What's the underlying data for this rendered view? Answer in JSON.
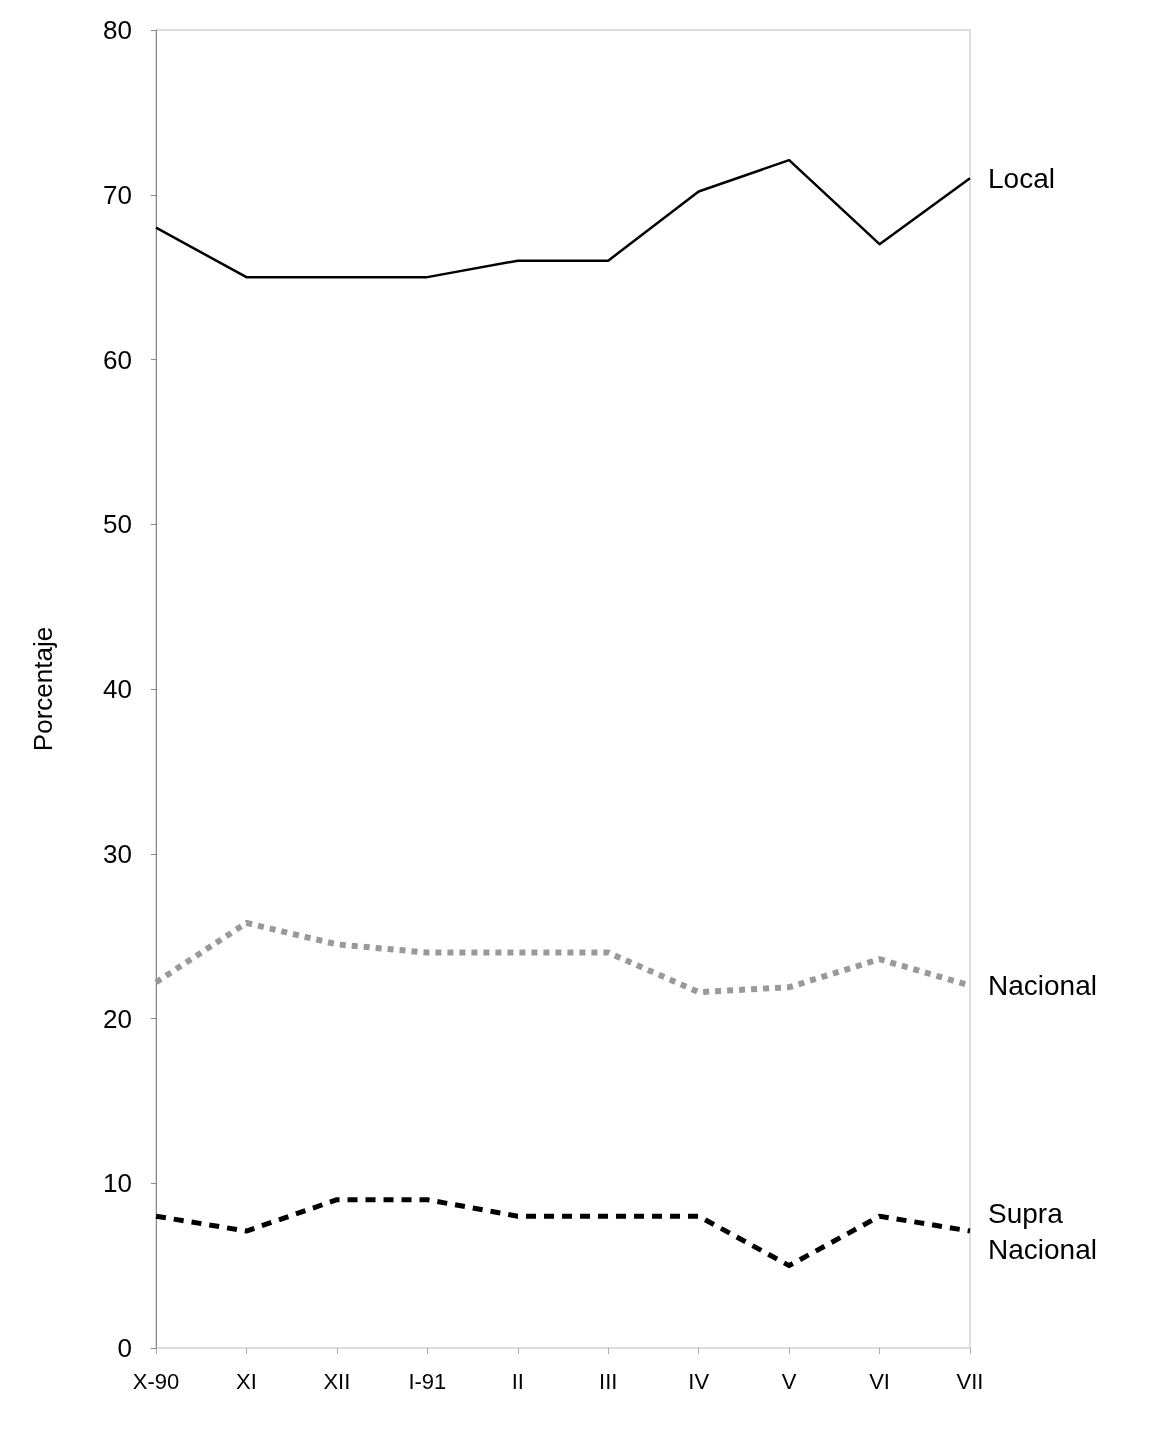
{
  "chart_data": {
    "type": "line",
    "ylabel": "Porcentaje",
    "categories": [
      "X-90",
      "XI",
      "XII",
      "I-91",
      "II",
      "III",
      "IV",
      "V",
      "VI",
      "VII"
    ],
    "series": [
      {
        "name": "Local",
        "color": "#000000",
        "line_style": "solid",
        "values": [
          68,
          65,
          65,
          65,
          66,
          66,
          70.2,
          72.1,
          67,
          71
        ]
      },
      {
        "name": "Nacional",
        "color": "#999999",
        "line_style": "dotted",
        "values": [
          22.2,
          25.8,
          24.5,
          24,
          24,
          24,
          21.6,
          21.9,
          23.6,
          22
        ]
      },
      {
        "name": "Supra\nNacional",
        "color": "#000000",
        "line_style": "dashed",
        "values": [
          8,
          7.1,
          9,
          9,
          8,
          8,
          8,
          5,
          8,
          7.1
        ]
      }
    ],
    "ylim": [
      0,
      80
    ],
    "yticks": [
      0,
      10,
      20,
      30,
      40,
      50,
      60,
      70,
      80
    ],
    "grid": false,
    "legend": false,
    "marker": "none"
  }
}
